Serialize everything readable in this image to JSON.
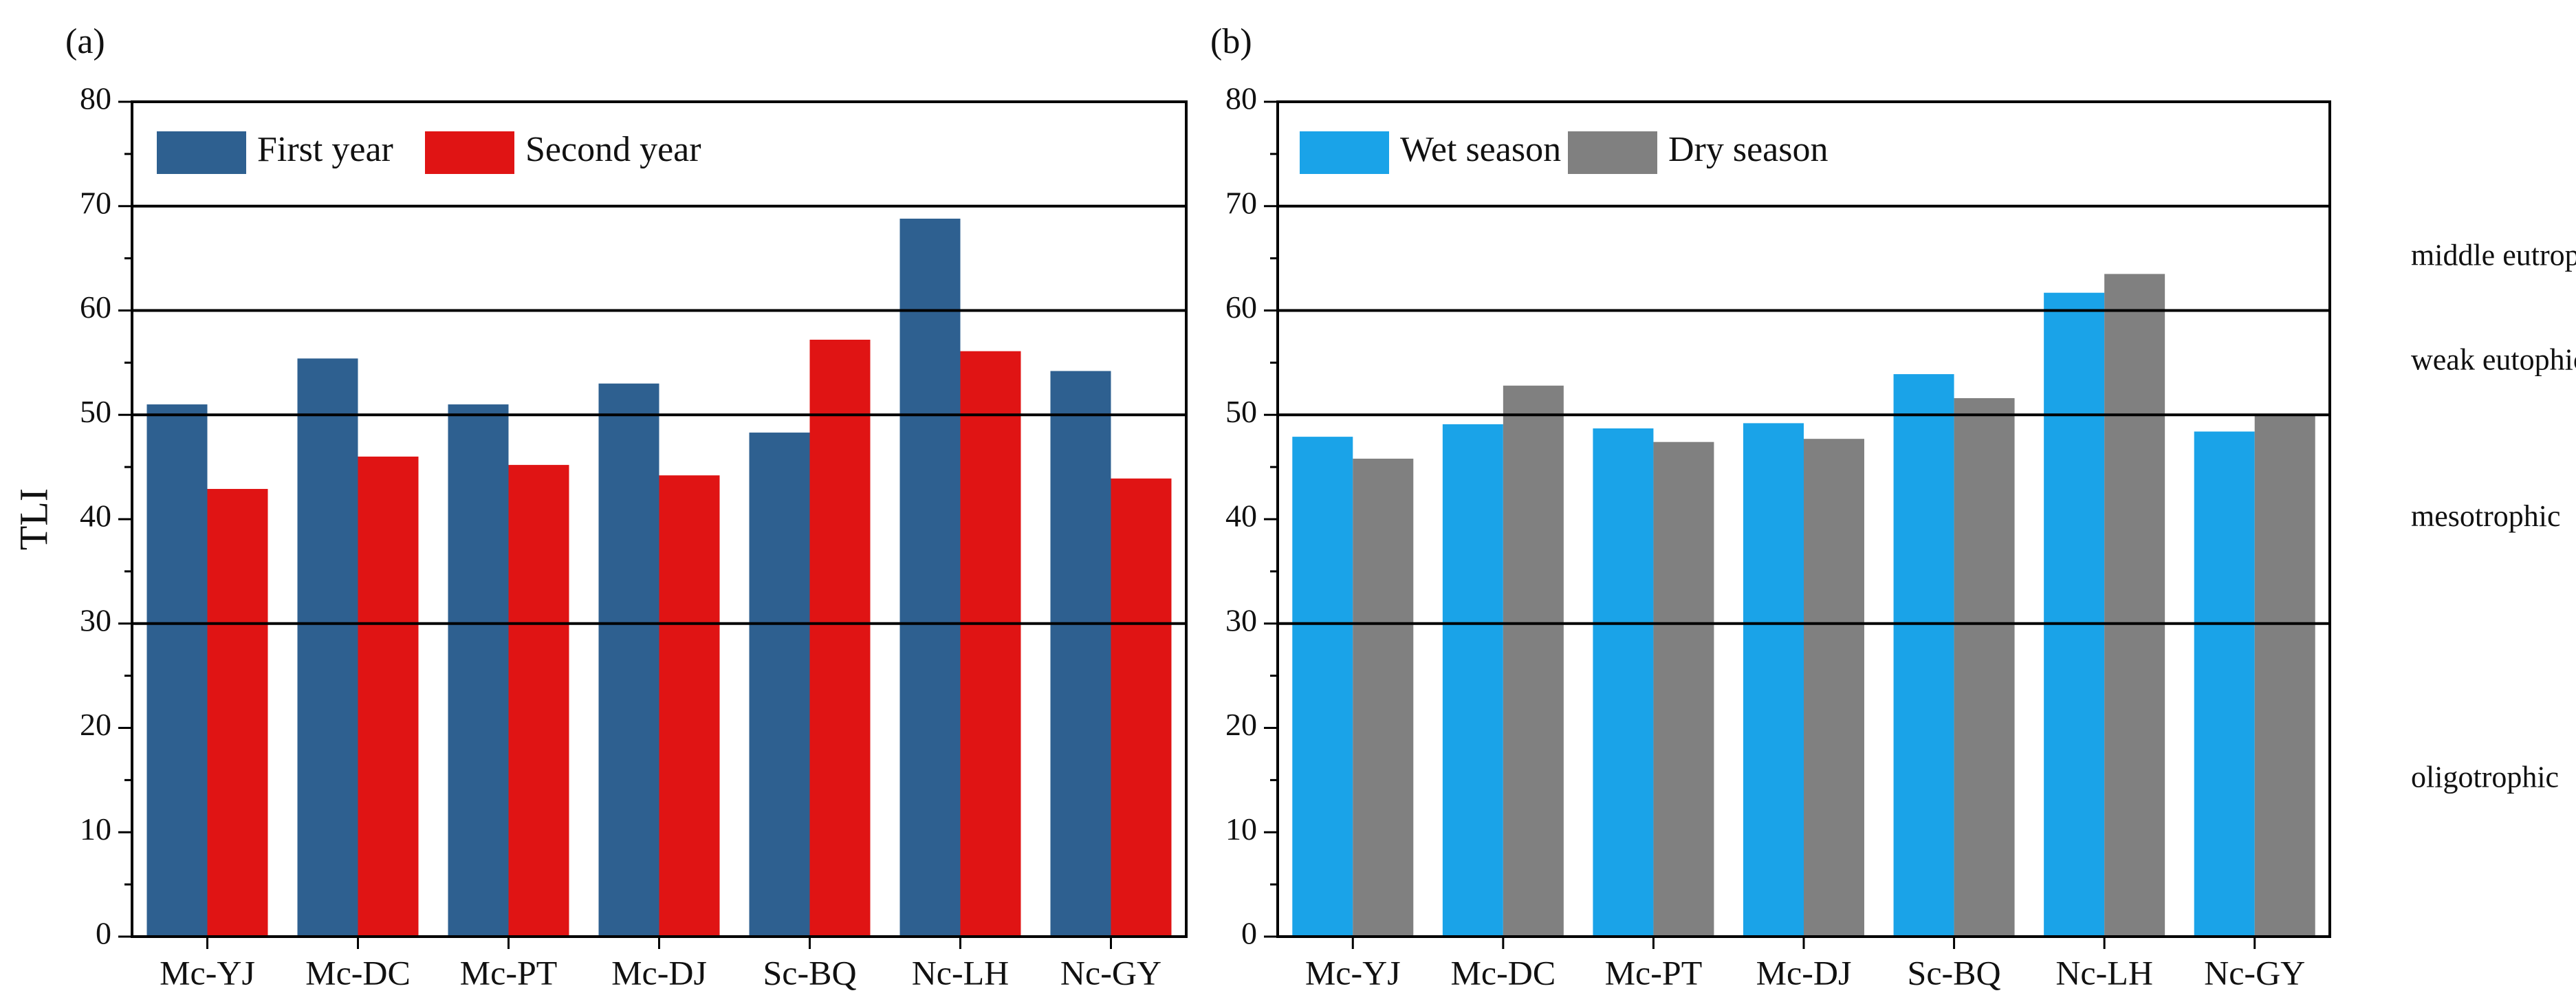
{
  "chart_data": [
    {
      "panel_label": "(a)",
      "type": "bar",
      "categories": [
        "Mc-YJ",
        "Mc-DC",
        "Mc-PT",
        "Mc-DJ",
        "Sc-BQ",
        "Nc-LH",
        "Nc-GY"
      ],
      "series": [
        {
          "name": "First year",
          "color": "#2e6090",
          "values": [
            51,
            55.4,
            51,
            53,
            48.3,
            68.8,
            54.2
          ]
        },
        {
          "name": "Second year",
          "color": "#e01414",
          "values": [
            42.9,
            46,
            45.2,
            44.2,
            57.2,
            56.1,
            43.9
          ]
        }
      ],
      "ylabel": "TLI",
      "ylim": [
        0,
        80
      ],
      "yticks": [
        "0",
        "10",
        "20",
        "30",
        "40",
        "50",
        "60",
        "70",
        "80"
      ],
      "reference_lines": [
        30,
        50,
        60,
        70
      ],
      "legend_position": "top-left"
    },
    {
      "panel_label": "(b)",
      "type": "bar",
      "categories": [
        "Mc-YJ",
        "Mc-DC",
        "Mc-PT",
        "Mc-DJ",
        "Sc-BQ",
        "Nc-LH",
        "Nc-GY"
      ],
      "series": [
        {
          "name": "Wet season",
          "color": "#1aa3e8",
          "values": [
            47.9,
            49.1,
            48.7,
            49.2,
            53.9,
            61.7,
            48.4
          ]
        },
        {
          "name": "Dry season",
          "color": "#808080",
          "values": [
            45.8,
            52.8,
            47.4,
            47.7,
            51.6,
            63.5,
            50
          ]
        }
      ],
      "ylim": [
        0,
        80
      ],
      "yticks": [
        "0",
        "10",
        "20",
        "30",
        "40",
        "50",
        "60",
        "70",
        "80"
      ],
      "reference_lines": [
        30,
        50,
        60,
        70
      ],
      "zone_labels": [
        {
          "text": "middle eutrophic",
          "value": 65
        },
        {
          "text": "weak eutophic",
          "value": 55
        },
        {
          "text": "mesotrophic",
          "value": 40
        },
        {
          "text": "oligotrophic",
          "value": 15
        }
      ],
      "legend_position": "top-left"
    }
  ]
}
